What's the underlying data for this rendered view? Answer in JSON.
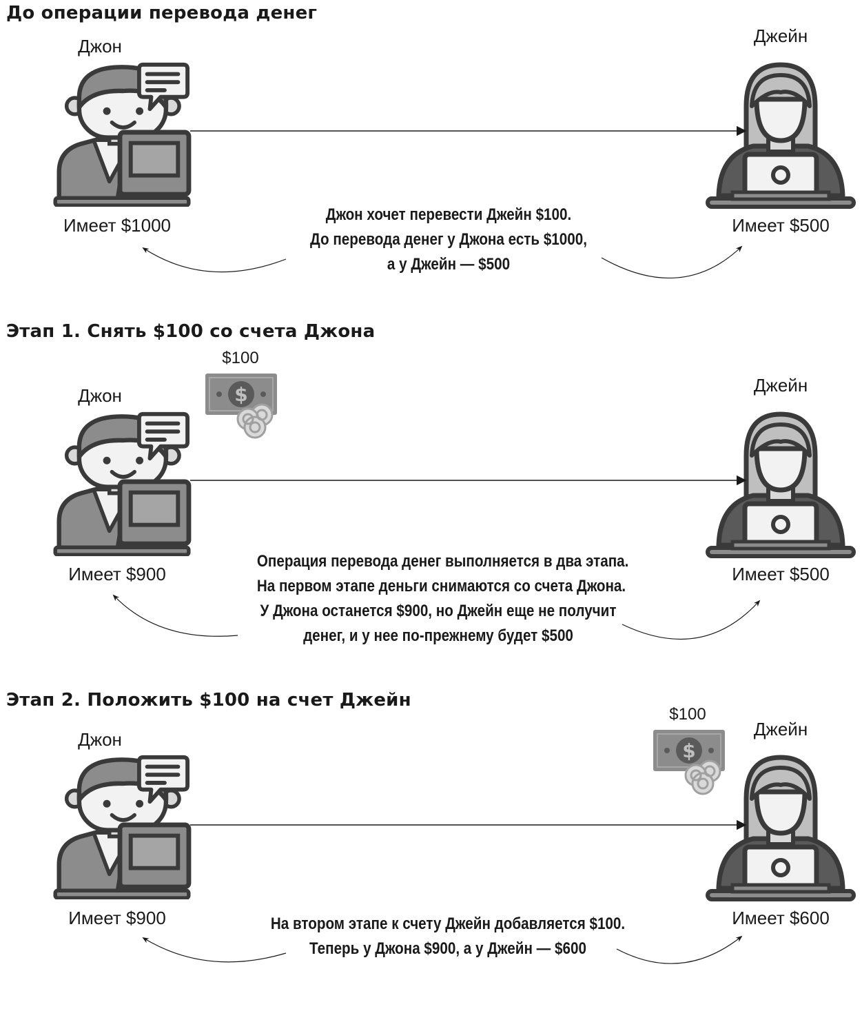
{
  "sections": [
    {
      "heading": "До операции перевода денег",
      "john": {
        "name": "Джон",
        "balance": "Имеет $1000"
      },
      "jane": {
        "name": "Джейн",
        "balance": "Имеет $500"
      },
      "description": [
        "Джон хочет перевести Джейн $100.",
        "До перевода денег у Джона есть $1000,",
        "а у Джейн — $500"
      ],
      "money": null
    },
    {
      "heading": "Этап 1. Снять $100 со счета Джона",
      "john": {
        "name": "Джон",
        "balance": "Имеет $900"
      },
      "jane": {
        "name": "Джейн",
        "balance": "Имеет $500"
      },
      "description": [
        "Операция перевода денег выполняется в два этапа.",
        "На первом этапе деньги снимаются со счета Джона.",
        "У Джона останется $900, но Джейн еще не получит",
        "денег, и у нее по-прежнему будет $500"
      ],
      "money": {
        "amount": "$100",
        "side": "john"
      }
    },
    {
      "heading": "Этап 2. Положить $100 на счет Джейн",
      "john": {
        "name": "Джон",
        "balance": "Имеет $900"
      },
      "jane": {
        "name": "Джейн",
        "balance": "Имеет $600"
      },
      "description": [
        "На втором этапе к счету Джейн добавляется $100.",
        "Теперь у Джона $900, а у Джейн — $600"
      ],
      "money": {
        "amount": "$100",
        "side": "jane"
      }
    }
  ],
  "icons": {
    "john": "man-at-laptop-with-chat-icon",
    "jane": "woman-at-laptop-icon",
    "money": "banknote-with-coins-icon"
  },
  "colors": {
    "dark": "#3a3a3a",
    "mid": "#8c8c8c",
    "light": "#d9d9d9",
    "white": "#f2f2f2"
  }
}
